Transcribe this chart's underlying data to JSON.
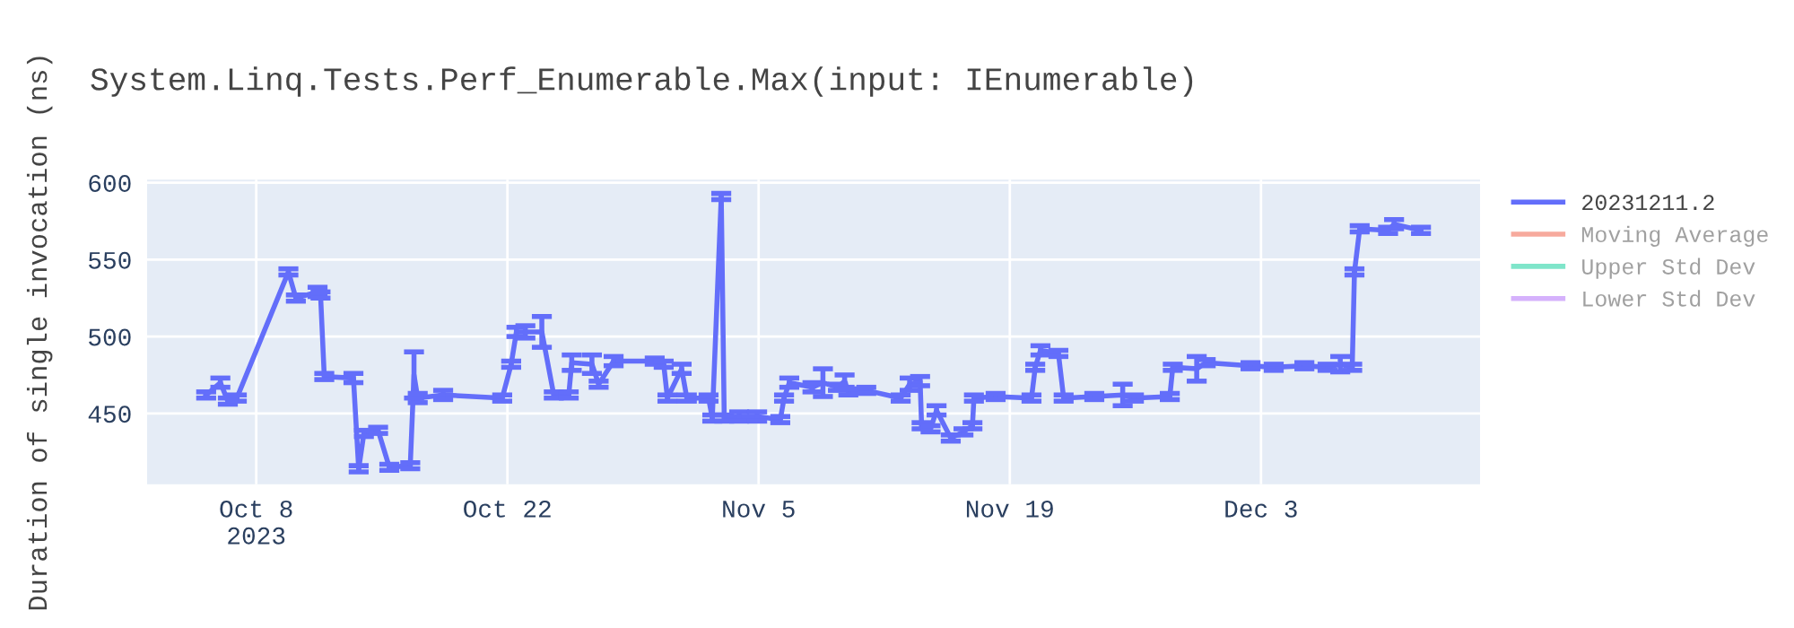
{
  "chart_data": {
    "type": "line",
    "title": "System.Linq.Tests.Perf_Enumerable.Max(input: IEnumerable)",
    "ylabel": "Duration of single invocation (ns)",
    "x": [
      "2023-10-05T05:00",
      "2023-10-06T00:00",
      "2023-10-06T10:00",
      "2023-10-06T22:00",
      "2023-10-09T19:00",
      "2023-10-10T05:00",
      "2023-10-11T10:00",
      "2023-10-11T14:00",
      "2023-10-11T19:00",
      "2023-10-13T10:00",
      "2023-10-13T17:00",
      "2023-10-14T00:00",
      "2023-10-14T19:00",
      "2023-10-15T10:00",
      "2023-10-16T14:00",
      "2023-10-16T19:00",
      "2023-10-17T00:00",
      "2023-10-18T10:00",
      "2023-10-21T17:00",
      "2023-10-22T05:00",
      "2023-10-22T12:00",
      "2023-10-23T00:00",
      "2023-10-23T22:00",
      "2023-10-24T14:00",
      "2023-10-25T10:00",
      "2023-10-25T14:00",
      "2023-10-26T17:00",
      "2023-10-27T02:00",
      "2023-10-27T22:00",
      "2023-10-30T05:00",
      "2023-10-30T17:00",
      "2023-10-30T22:00",
      "2023-10-31T17:00",
      "2023-11-01T00:00",
      "2023-11-02T05:00",
      "2023-11-02T10:00",
      "2023-11-02T22:00",
      "2023-11-03T02:00",
      "2023-11-03T22:00",
      "2023-11-04T22:00",
      "2023-11-06T05:00",
      "2023-11-06T10:00",
      "2023-11-06T17:00",
      "2023-11-08T00:00",
      "2023-11-08T14:00",
      "2023-11-09T10:00",
      "2023-11-09T19:00",
      "2023-11-10T00:00",
      "2023-11-11T00:00",
      "2023-11-12T22:00",
      "2023-11-13T10:00",
      "2023-11-14T00:00",
      "2023-11-14T02:00",
      "2023-11-14T14:00",
      "2023-11-14T22:00",
      "2023-11-15T17:00",
      "2023-11-16T10:00",
      "2023-11-16T22:00",
      "2023-11-17T00:00",
      "2023-11-18T05:00",
      "2023-11-20T05:00",
      "2023-11-20T10:00",
      "2023-11-20T17:00",
      "2023-11-21T17:00",
      "2023-11-22T00:00",
      "2023-11-23T17:00",
      "2023-11-25T07:00",
      "2023-11-25T22:00",
      "2023-11-27T22:00",
      "2023-11-28T02:00",
      "2023-11-29T10:00",
      "2023-11-29T22:00",
      "2023-12-02T10:00",
      "2023-12-03T17:00",
      "2023-12-05T10:00",
      "2023-12-06T17:00",
      "2023-12-07T10:00",
      "2023-12-08T02:00",
      "2023-12-08T05:00",
      "2023-12-08T12:00",
      "2023-12-10T02:00",
      "2023-12-10T10:00",
      "2023-12-11T22:00"
    ],
    "series": [
      {
        "name": "20231211.2",
        "color": "#636efa",
        "values": [
          462,
          470,
          458,
          460,
          542,
          525,
          529,
          527,
          474,
          473,
          414,
          437,
          439,
          415,
          416,
          475,
          460,
          462,
          460,
          482,
          503,
          503,
          503,
          462,
          462,
          483,
          482,
          469,
          484,
          484,
          482,
          460,
          479,
          460,
          460,
          447,
          591,
          447,
          448,
          448,
          446,
          460,
          470,
          467,
          470,
          467,
          471,
          464,
          465,
          460,
          469,
          471,
          442,
          440,
          452,
          434,
          438,
          442,
          460,
          461,
          460,
          480,
          491,
          489,
          460,
          461,
          462,
          460,
          461,
          480,
          479,
          483,
          481,
          480,
          481,
          480,
          482,
          480,
          542,
          570,
          569,
          573,
          569
        ],
        "errors": [
          2,
          3,
          2,
          2,
          2,
          2,
          3,
          2,
          2,
          3,
          2,
          2,
          2,
          2,
          2,
          15,
          3,
          3,
          2,
          2,
          3,
          4,
          10,
          2,
          2,
          5,
          6,
          2,
          3,
          2,
          2,
          2,
          3,
          2,
          2,
          2,
          2,
          2,
          3,
          3,
          2,
          2,
          3,
          3,
          9,
          2,
          4,
          2,
          2,
          2,
          4,
          3,
          2,
          2,
          3,
          2,
          2,
          2,
          2,
          2,
          2,
          2,
          3,
          2,
          2,
          2,
          7,
          2,
          2,
          2,
          8,
          2,
          2,
          2,
          2,
          2,
          5,
          2,
          2,
          2,
          2,
          3,
          2
        ]
      },
      {
        "name": "Moving Average",
        "color": "#ef553b",
        "values": [
          null,
          null,
          null,
          null,
          null,
          null,
          null,
          null,
          null,
          null,
          null,
          null,
          null,
          null,
          null,
          null,
          null,
          null,
          null,
          null,
          null,
          null,
          null,
          null,
          null,
          null,
          null,
          null,
          null,
          null,
          null,
          null,
          null,
          null,
          null,
          null,
          null,
          null,
          null,
          null,
          null,
          null,
          null,
          null,
          null,
          null,
          null,
          null,
          null,
          null,
          null,
          null,
          null,
          null,
          null,
          null,
          null,
          null,
          null,
          null,
          null,
          null,
          null,
          null,
          null,
          null,
          null,
          null,
          null,
          null,
          null,
          null,
          null,
          null,
          null,
          null,
          null,
          null,
          null,
          null,
          null,
          null,
          null
        ]
      },
      {
        "name": "Upper Std Dev",
        "color": "#00cc96",
        "values": [
          null,
          null,
          null,
          null,
          null,
          null,
          null,
          null,
          null,
          null,
          null,
          null,
          null,
          null,
          null,
          null,
          null,
          null,
          null,
          null,
          null,
          null,
          null,
          null,
          null,
          null,
          null,
          null,
          null,
          null,
          null,
          null,
          null,
          null,
          null,
          null,
          null,
          null,
          null,
          null,
          null,
          null,
          null,
          null,
          null,
          null,
          null,
          null,
          null,
          null,
          null,
          null,
          null,
          null,
          null,
          null,
          null,
          null,
          null,
          null,
          null,
          null,
          null,
          null,
          null,
          null,
          null,
          null,
          null,
          null,
          null,
          null,
          null,
          null,
          null,
          null,
          null,
          null,
          null,
          null,
          null,
          null,
          null
        ]
      },
      {
        "name": "Lower Std Dev",
        "color": "#ab63fa",
        "values": [
          null,
          null,
          null,
          null,
          null,
          null,
          null,
          null,
          null,
          null,
          null,
          null,
          null,
          null,
          null,
          null,
          null,
          null,
          null,
          null,
          null,
          null,
          null,
          null,
          null,
          null,
          null,
          null,
          null,
          null,
          null,
          null,
          null,
          null,
          null,
          null,
          null,
          null,
          null,
          null,
          null,
          null,
          null,
          null,
          null,
          null,
          null,
          null,
          null,
          null,
          null,
          null,
          null,
          null,
          null,
          null,
          null,
          null,
          null,
          null,
          null,
          null,
          null,
          null,
          null,
          null,
          null,
          null,
          null,
          null,
          null,
          null,
          null,
          null,
          null,
          null,
          null,
          null,
          null,
          null,
          null,
          null,
          null
        ]
      }
    ],
    "xlim": [
      "2023-10-01T22:00",
      "2023-12-15T05:00"
    ],
    "xticks": [
      {
        "value": "2023-10-08",
        "label": "Oct 8\n2023"
      },
      {
        "value": "2023-10-22",
        "label": "Oct 22"
      },
      {
        "value": "2023-11-05",
        "label": "Nov 5"
      },
      {
        "value": "2023-11-19",
        "label": "Nov 19"
      },
      {
        "value": "2023-12-03",
        "label": "Dec 3"
      }
    ],
    "ylim": [
      404,
      602
    ],
    "yticks": [
      450,
      500,
      550,
      600
    ],
    "grid": true,
    "legend": "right",
    "marker": "none",
    "line_style": "solid"
  }
}
